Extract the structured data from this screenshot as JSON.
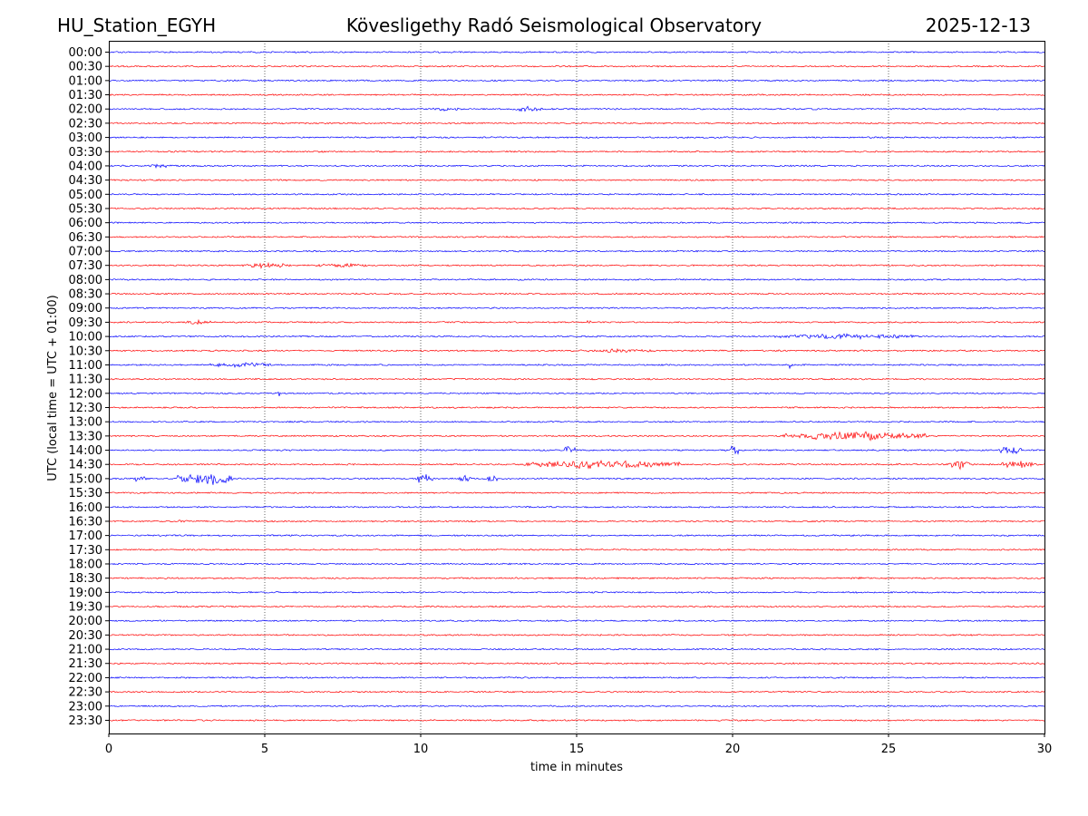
{
  "header": {
    "station": "HU_Station_EGYH",
    "title": "Kövesligethy Radó Seismological Observatory",
    "date": "2025-12-13"
  },
  "chart_data": {
    "type": "line",
    "title": "Kövesligethy Radó Seismological Observatory",
    "xlabel": "time in minutes",
    "ylabel": "UTC (local time = UTC + 01:00)",
    "xlim": [
      0,
      30
    ],
    "x_ticks": [
      "0",
      "5",
      "10",
      "15",
      "20",
      "25",
      "30"
    ],
    "x_gridlines": [
      5,
      10,
      15,
      20,
      25
    ],
    "grid": "vertical dotted",
    "trace_colors": [
      "#0000ff",
      "#ff0000"
    ],
    "rows": [
      "00:00",
      "00:30",
      "01:00",
      "01:30",
      "02:00",
      "02:30",
      "03:00",
      "03:30",
      "04:00",
      "04:30",
      "05:00",
      "05:30",
      "06:00",
      "06:30",
      "07:00",
      "07:30",
      "08:00",
      "08:30",
      "09:00",
      "09:30",
      "10:00",
      "10:30",
      "11:00",
      "11:30",
      "12:00",
      "12:30",
      "13:00",
      "13:30",
      "14:00",
      "14:30",
      "15:00",
      "15:30",
      "16:00",
      "16:30",
      "17:00",
      "17:30",
      "18:00",
      "18:30",
      "19:00",
      "19:30",
      "20:00",
      "20:30",
      "21:00",
      "21:30",
      "22:00",
      "22:30",
      "23:00",
      "23:30"
    ],
    "events": [
      {
        "row": "02:00",
        "t0": 10.4,
        "t1": 11.2,
        "amp": 3
      },
      {
        "row": "02:00",
        "t0": 12.9,
        "t1": 13.9,
        "amp": 3
      },
      {
        "row": "04:00",
        "t0": 1.2,
        "t1": 2.0,
        "amp": 2.5
      },
      {
        "row": "07:30",
        "t0": 4.3,
        "t1": 5.8,
        "amp": 3
      },
      {
        "row": "07:30",
        "t0": 6.6,
        "t1": 8.3,
        "amp": 3
      },
      {
        "row": "09:30",
        "t0": 2.4,
        "t1": 3.3,
        "amp": 3
      },
      {
        "row": "09:30",
        "t0": 15.1,
        "t1": 15.6,
        "amp": 2
      },
      {
        "row": "10:00",
        "t0": 21.3,
        "t1": 25.8,
        "amp": 3
      },
      {
        "row": "10:30",
        "t0": 15.0,
        "t1": 17.5,
        "amp": 2.5
      },
      {
        "row": "11:00",
        "t0": 3.0,
        "t1": 5.2,
        "amp": 3
      },
      {
        "row": "11:00",
        "t0": 21.8,
        "t1": 21.9,
        "amp": 6
      },
      {
        "row": "12:00",
        "t0": 5.4,
        "t1": 5.5,
        "amp": 7
      },
      {
        "row": "13:30",
        "t0": 21.6,
        "t1": 26.3,
        "amp": 5
      },
      {
        "row": "14:00",
        "t0": 14.6,
        "t1": 15.0,
        "amp": 5
      },
      {
        "row": "14:00",
        "t0": 19.9,
        "t1": 20.2,
        "amp": 7
      },
      {
        "row": "14:00",
        "t0": 28.5,
        "t1": 29.3,
        "amp": 6
      },
      {
        "row": "14:30",
        "t0": 13.3,
        "t1": 18.3,
        "amp": 5
      },
      {
        "row": "14:30",
        "t0": 26.9,
        "t1": 27.6,
        "amp": 6
      },
      {
        "row": "14:30",
        "t0": 28.6,
        "t1": 29.8,
        "amp": 5
      },
      {
        "row": "15:00",
        "t0": 0.8,
        "t1": 1.2,
        "amp": 5
      },
      {
        "row": "15:00",
        "t0": 2.2,
        "t1": 4.0,
        "amp": 8
      },
      {
        "row": "15:00",
        "t0": 9.8,
        "t1": 10.4,
        "amp": 6
      },
      {
        "row": "15:00",
        "t0": 11.2,
        "t1": 11.6,
        "amp": 6
      },
      {
        "row": "15:00",
        "t0": 12.1,
        "t1": 12.5,
        "amp": 5
      },
      {
        "row": "16:30",
        "t0": 2.2,
        "t1": 2.5,
        "amp": 2
      },
      {
        "row": "18:30",
        "t0": 24.0,
        "t1": 24.2,
        "amp": 2.5
      }
    ]
  }
}
